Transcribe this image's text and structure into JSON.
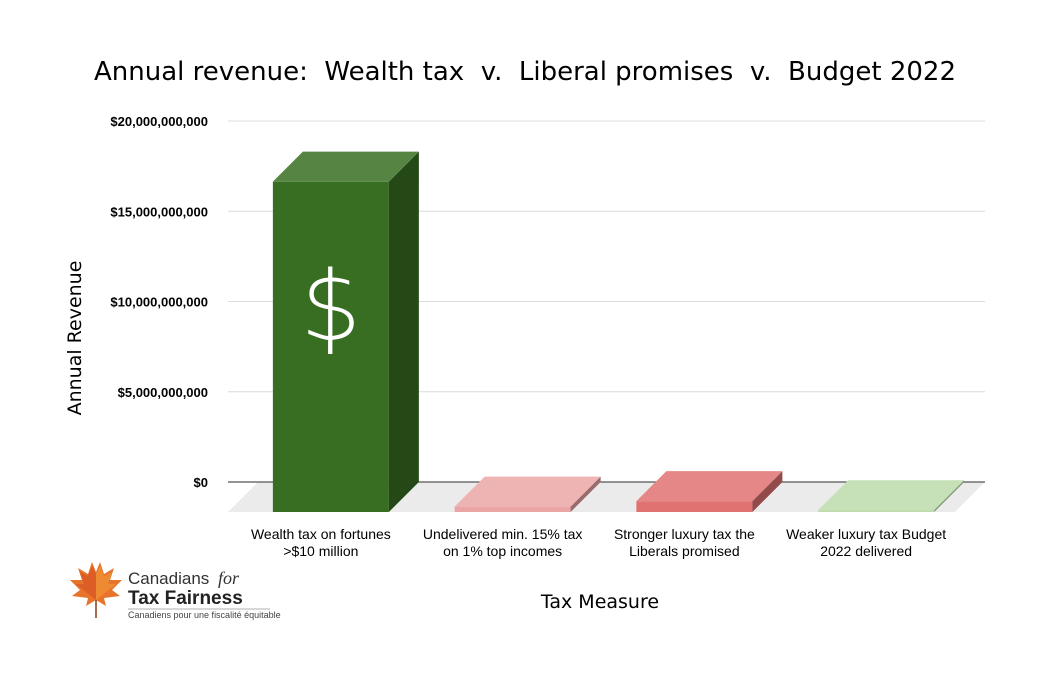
{
  "chart_data": {
    "type": "bar",
    "title": "Annual revenue:  Wealth tax  v.  Liberal promises  v.  Budget 2022",
    "xlabel": "Tax Measure",
    "ylabel": "Annual Revenue",
    "ylim": [
      0,
      20000000000
    ],
    "yticks": [
      "$0",
      "$5,000,000,000",
      "$10,000,000,000",
      "$15,000,000,000",
      "$20,000,000,000"
    ],
    "ytick_values": [
      0,
      5000000000,
      10000000000,
      15000000000,
      20000000000
    ],
    "grid": true,
    "categories": [
      [
        "Wealth tax on fortunes",
        ">$10 million"
      ],
      [
        "Undelivered min. 15% tax",
        "on 1% top incomes"
      ],
      [
        "Stronger luxury tax the",
        "Liberals promised"
      ],
      [
        "Weaker luxury tax Budget",
        "2022 delivered"
      ]
    ],
    "values": [
      18300000000,
      300000000,
      600000000,
      100000000
    ],
    "colors": [
      "#376e22",
      "#eba5a5",
      "#e07272",
      "#bcdcaa"
    ],
    "bar_annotation": "$"
  },
  "logo": {
    "line1": "Canadians",
    "line1_italic": "for",
    "line2": "Tax Fairness",
    "line3": "Canadiens pour une fiscalité équitable"
  }
}
